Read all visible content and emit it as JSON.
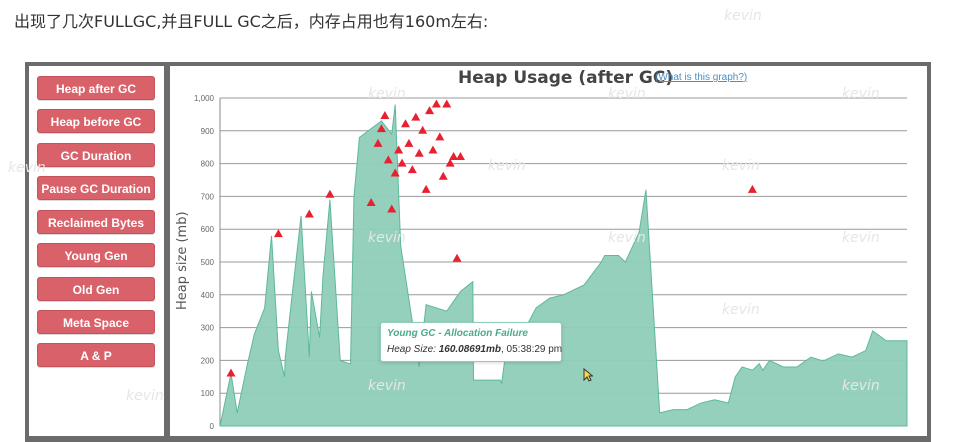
{
  "intro_text": "出现了几次FULLGC,并且FULL GC之后，内存占用也有160m左右:",
  "watermark": "kevin",
  "sidebar": {
    "items": [
      {
        "label": "Heap after GC"
      },
      {
        "label": "Heap before GC"
      },
      {
        "label": "GC Duration"
      },
      {
        "label": "Pause GC Duration"
      },
      {
        "label": "Reclaimed Bytes"
      },
      {
        "label": "Young Gen"
      },
      {
        "label": "Old Gen"
      },
      {
        "label": "Meta Space"
      },
      {
        "label": "A & P"
      }
    ],
    "button_color": "#d9626a"
  },
  "chart_link": "(What is this graph?)",
  "tooltip": {
    "title": "Young GC - Allocation Failure",
    "label": "Heap Size:",
    "value": "160.08691mb",
    "time": ", 05:38:29 pm"
  },
  "chart_data": {
    "type": "area",
    "title": "Heap Usage (after GC)",
    "ylabel": "Heap size (mb)",
    "xlabel": "",
    "ylim": [
      0,
      1000
    ],
    "yticks": [
      0,
      100,
      200,
      300,
      400,
      500,
      600,
      700,
      800,
      900,
      1000
    ],
    "ytick_labels": [
      "0",
      "100",
      "200",
      "300",
      "400",
      "500",
      "600",
      "700",
      "800",
      "900",
      "1,000"
    ],
    "grid": true,
    "fill_color": "#8fcdb9",
    "line_color": "#5fb89a",
    "marker_color": "#e82030",
    "x_range": [
      0,
      100
    ],
    "series": [
      {
        "x": [
          0,
          1.6,
          2.5,
          3.1,
          4.0,
          5.0,
          6.5,
          7.5,
          8.5,
          9.4,
          9.5,
          10.5,
          11.8,
          13.0,
          13.3,
          14.5,
          15.0,
          16.0,
          17.5,
          18.8,
          19.0,
          19.5,
          20.3,
          23.5,
          25.0,
          25.5,
          26.3,
          29.0,
          30.0,
          33.0,
          35.0,
          36.8,
          36.9,
          40.8,
          41.0,
          42.0,
          43.0,
          44.0,
          46.0,
          48.0,
          50.0,
          52.0,
          53.0,
          55.5,
          56.0,
          58.0,
          59.0,
          61.0,
          62.0,
          64.0,
          66.0,
          68.0,
          70.0,
          72.0,
          74.0,
          75.0,
          76.0,
          77.5,
          78.0,
          78.5,
          79.0,
          80.0,
          81.0,
          82.0,
          84.0,
          86.0,
          87.5,
          88.0,
          90.0,
          92.0,
          94.0,
          95.0,
          97.0,
          99.0,
          100.0
        ],
        "y": [
          0,
          160,
          40,
          100,
          190,
          280,
          360,
          580,
          230,
          150,
          210,
          400,
          640,
          210,
          410,
          270,
          460,
          690,
          200,
          190,
          190,
          700,
          880,
          930,
          890,
          980,
          550,
          180,
          370,
          350,
          410,
          440,
          140,
          140,
          130,
          290,
          300,
          280,
          360,
          390,
          400,
          420,
          430,
          500,
          520,
          520,
          500,
          590,
          720,
          40,
          50,
          50,
          70,
          80,
          70,
          150,
          180,
          170,
          180,
          190,
          170,
          200,
          190,
          180,
          180,
          210,
          200,
          200,
          220,
          210,
          230,
          290,
          260,
          260,
          260
        ]
      }
    ],
    "full_gc_markers": [
      {
        "x": 1.6,
        "y": 160
      },
      {
        "x": 8.5,
        "y": 585
      },
      {
        "x": 13.0,
        "y": 645
      },
      {
        "x": 16.0,
        "y": 705
      },
      {
        "x": 22.0,
        "y": 680
      },
      {
        "x": 23.0,
        "y": 860
      },
      {
        "x": 23.5,
        "y": 905
      },
      {
        "x": 24.0,
        "y": 945
      },
      {
        "x": 24.5,
        "y": 810
      },
      {
        "x": 25.0,
        "y": 660
      },
      {
        "x": 25.5,
        "y": 770
      },
      {
        "x": 26.0,
        "y": 840
      },
      {
        "x": 26.5,
        "y": 800
      },
      {
        "x": 27.0,
        "y": 920
      },
      {
        "x": 27.5,
        "y": 860
      },
      {
        "x": 28.0,
        "y": 780
      },
      {
        "x": 28.5,
        "y": 940
      },
      {
        "x": 29.0,
        "y": 830
      },
      {
        "x": 29.5,
        "y": 900
      },
      {
        "x": 30.0,
        "y": 720
      },
      {
        "x": 30.5,
        "y": 960
      },
      {
        "x": 31.0,
        "y": 840
      },
      {
        "x": 31.5,
        "y": 980
      },
      {
        "x": 32.0,
        "y": 880
      },
      {
        "x": 32.5,
        "y": 760
      },
      {
        "x": 33.0,
        "y": 980
      },
      {
        "x": 33.5,
        "y": 800
      },
      {
        "x": 34.0,
        "y": 820
      },
      {
        "x": 34.5,
        "y": 510
      },
      {
        "x": 35.0,
        "y": 820
      },
      {
        "x": 77.5,
        "y": 720
      }
    ]
  }
}
